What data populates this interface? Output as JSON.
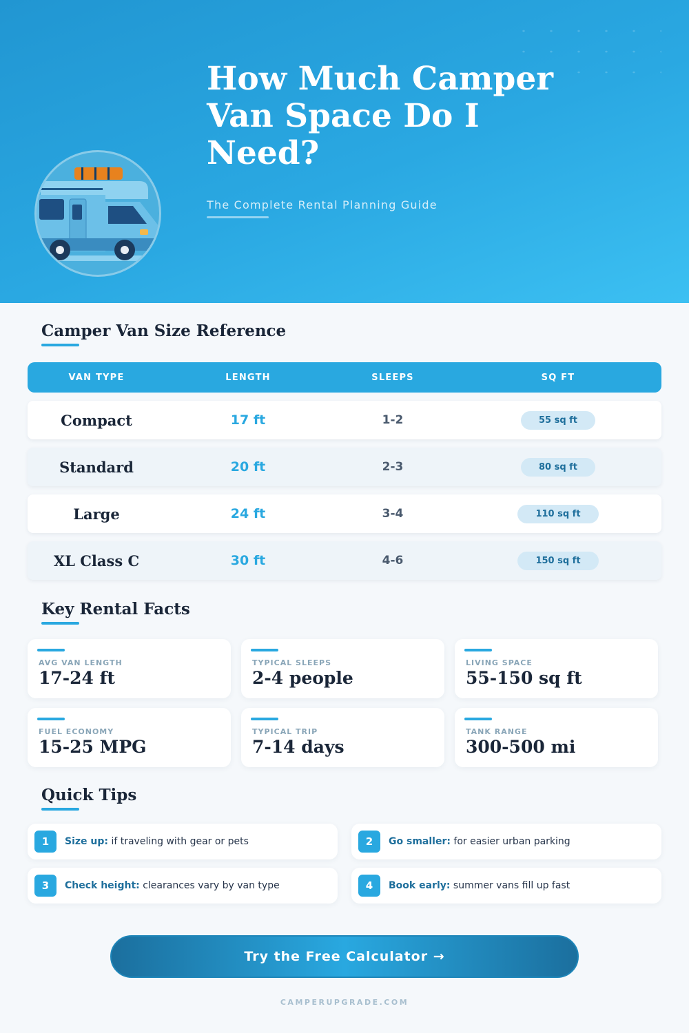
{
  "hero": {
    "title": "How Much Camper Van Space Do I Need?",
    "subtitle": "The Complete Rental Planning Guide",
    "illustration": "camper-van"
  },
  "size_reference": {
    "title": "Camper Van Size Reference",
    "columns": [
      "VAN TYPE",
      "LENGTH",
      "SLEEPS",
      "SQ FT"
    ],
    "rows": [
      {
        "type": "Compact",
        "length": "17 ft",
        "sleeps": "1-2",
        "sqft": "55 sq ft"
      },
      {
        "type": "Standard",
        "length": "20 ft",
        "sleeps": "2-3",
        "sqft": "80 sq ft"
      },
      {
        "type": "Large",
        "length": "24 ft",
        "sleeps": "3-4",
        "sqft": "110 sq ft"
      },
      {
        "type": "XL Class C",
        "length": "30 ft",
        "sleeps": "4-6",
        "sqft": "150 sq ft"
      }
    ]
  },
  "facts": {
    "title": "Key Rental Facts",
    "items": [
      {
        "label": "AVG VAN LENGTH",
        "value": "17-24 ft"
      },
      {
        "label": "TYPICAL SLEEPS",
        "value": "2-4 people"
      },
      {
        "label": "LIVING SPACE",
        "value": "55-150 sq ft"
      },
      {
        "label": "FUEL ECONOMY",
        "value": "15-25 MPG"
      },
      {
        "label": "TYPICAL TRIP",
        "value": "7-14 days"
      },
      {
        "label": "TANK RANGE",
        "value": "300-500 mi"
      }
    ]
  },
  "tips": {
    "title": "Quick Tips",
    "items": [
      {
        "num": "1",
        "bold": "Size up:",
        "text": " if traveling with gear or pets"
      },
      {
        "num": "2",
        "bold": "Go smaller:",
        "text": " for easier urban parking"
      },
      {
        "num": "3",
        "bold": "Check height:",
        "text": " clearances vary by van type"
      },
      {
        "num": "4",
        "bold": "Book early:",
        "text": " summer vans fill up fast"
      }
    ]
  },
  "cta": {
    "label": "Try the Free Calculator →"
  },
  "footer": {
    "site": "CAMPERUPGRADE.COM"
  },
  "colors": {
    "accent": "#29a8e0",
    "dark": "#1a2638",
    "pill": "#d3e9f6"
  }
}
